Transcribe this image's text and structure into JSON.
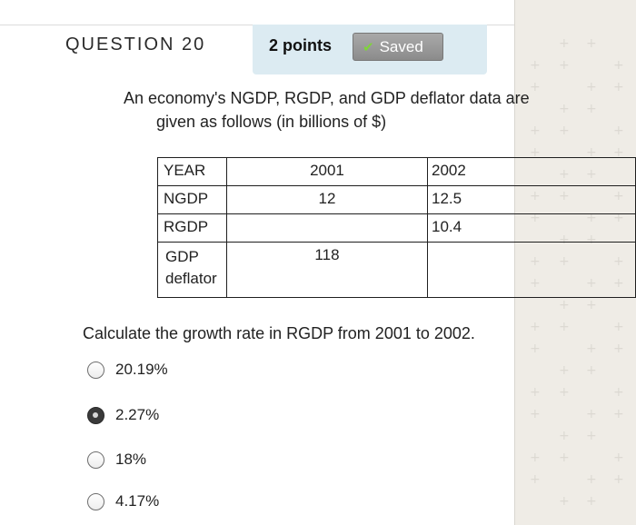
{
  "question": {
    "number_label": "QUESTION 20",
    "points_label": "2 points",
    "status_label": "Saved",
    "status_icon": "check-icon",
    "text_line1": "An economy's NGDP, RGDP, and GDP deflator data are",
    "text_line2": "given as follows (in billions of $)"
  },
  "table": {
    "header": [
      "YEAR",
      "2001",
      "2002"
    ],
    "rows": [
      [
        "NGDP",
        "12",
        "12.5"
      ],
      [
        "RGDP",
        "",
        "10.4"
      ],
      [
        "GDP deflator",
        "118",
        ""
      ]
    ],
    "deflator_label_parts": [
      "GDP",
      "deflator"
    ]
  },
  "prompt": "Calculate the growth rate in RGDP from 2001 to 2002.",
  "options": [
    {
      "label": "20.19%",
      "selected": false
    },
    {
      "label": "2.27%",
      "selected": true
    },
    {
      "label": "18%",
      "selected": false
    },
    {
      "label": "4.17%",
      "selected": false
    }
  ],
  "colors": {
    "points_box_bg": "#dcebf2",
    "saved_badge_bg": "#9a9a9a",
    "check_color": "#7fd43a",
    "side_panel_bg": "#efece6"
  }
}
